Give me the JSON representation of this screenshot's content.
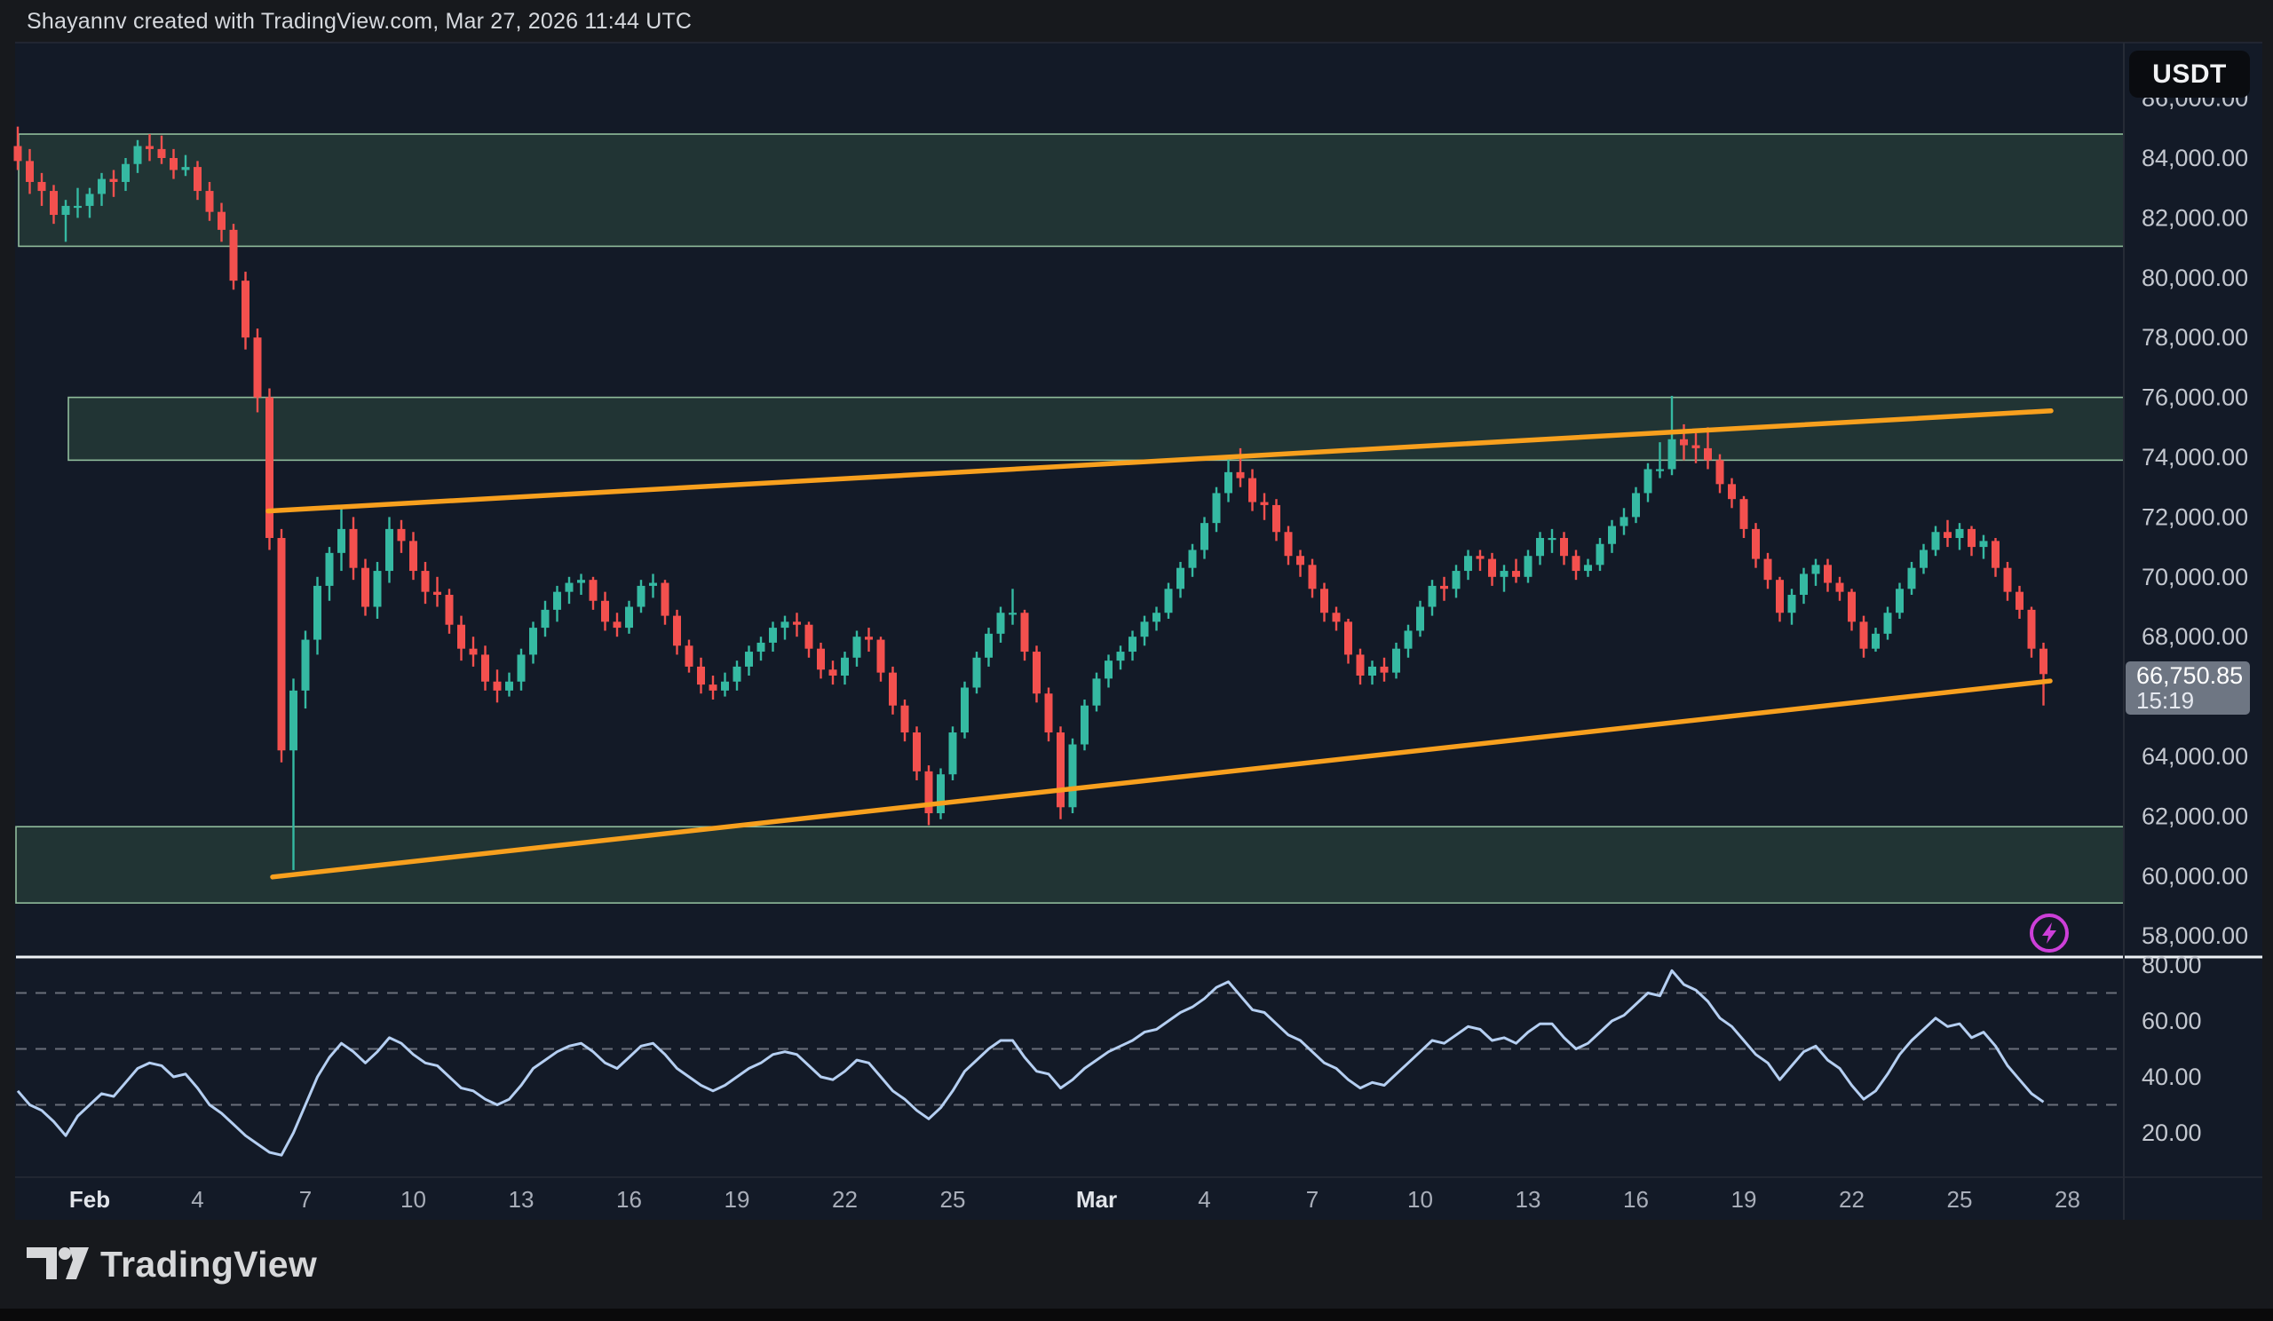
{
  "header": {
    "attribution": "Shayannv created with TradingView.com, Mar 27, 2026 11:44 UTC"
  },
  "price_scale_button_label": "USDT",
  "price_badge": {
    "price": "66,750.85",
    "countdown": "15:19"
  },
  "footer": {
    "brand": "TradingView"
  },
  "colors": {
    "background": "#131a27",
    "chrome": "#17191d",
    "up_candle": "#35b9a2",
    "down_candle": "#f3504e",
    "trendline": "#f8a01e",
    "zone_fill": "rgba(110,190,125,0.16)",
    "zone_border": "rgba(166,215,175,0.85)",
    "rsi_line": "#b5cff2",
    "rsi_band_dash": "#6a6f7a",
    "separator": "#eef1f5",
    "axis_text": "#c3c7cf",
    "time_text": "#a9aeb9",
    "time_text_bold": "#e2e5ea",
    "panel_border": "#262b36",
    "badge_bg": "#6e7683",
    "accent_purple": "#cd3fd9"
  },
  "chart_data": {
    "type": "candlestick",
    "quote_currency": "USDT",
    "timeframe": "8h",
    "unit": "USD_thousands",
    "last_price": 66750.85,
    "ylim": [
      58000,
      86000
    ],
    "grid": "off",
    "candles": [
      [
        84.4,
        85.05,
        83.6,
        83.9
      ],
      [
        83.9,
        84.3,
        82.8,
        83.2
      ],
      [
        83.2,
        83.5,
        82.4,
        82.9
      ],
      [
        82.9,
        83.1,
        81.8,
        82.1
      ],
      [
        82.1,
        82.6,
        81.2,
        82.4
      ],
      [
        82.4,
        83.0,
        82.0,
        82.4
      ],
      [
        82.4,
        83.0,
        82.0,
        82.8
      ],
      [
        82.8,
        83.5,
        82.4,
        83.3
      ],
      [
        83.3,
        83.6,
        82.7,
        83.2
      ],
      [
        83.2,
        84.0,
        82.9,
        83.8
      ],
      [
        83.8,
        84.6,
        83.5,
        84.4
      ],
      [
        84.4,
        84.8,
        83.9,
        84.3
      ],
      [
        84.3,
        84.75,
        83.8,
        84.0
      ],
      [
        84.0,
        84.3,
        83.3,
        83.6
      ],
      [
        83.6,
        84.1,
        83.4,
        83.7
      ],
      [
        83.7,
        83.9,
        82.6,
        82.9
      ],
      [
        82.9,
        83.2,
        81.9,
        82.2
      ],
      [
        82.2,
        82.5,
        81.2,
        81.6
      ],
      [
        81.6,
        81.8,
        79.6,
        79.9
      ],
      [
        79.9,
        80.2,
        77.6,
        78.0
      ],
      [
        78.0,
        78.3,
        75.5,
        76.0
      ],
      [
        76.0,
        76.3,
        70.9,
        71.3
      ],
      [
        71.3,
        71.6,
        63.8,
        64.2
      ],
      [
        64.2,
        66.6,
        60.2,
        66.2
      ],
      [
        66.2,
        68.2,
        65.6,
        67.9
      ],
      [
        67.9,
        70.0,
        67.4,
        69.7
      ],
      [
        69.7,
        71.0,
        69.2,
        70.8
      ],
      [
        70.8,
        72.4,
        70.2,
        71.6
      ],
      [
        71.6,
        72.0,
        69.9,
        70.3
      ],
      [
        70.3,
        70.6,
        68.7,
        69.0
      ],
      [
        69.0,
        70.5,
        68.6,
        70.2
      ],
      [
        70.2,
        72.0,
        69.8,
        71.6
      ],
      [
        71.6,
        71.9,
        70.8,
        71.2
      ],
      [
        71.2,
        71.5,
        69.9,
        70.2
      ],
      [
        70.2,
        70.5,
        69.1,
        69.5
      ],
      [
        69.5,
        70.0,
        69.0,
        69.4
      ],
      [
        69.4,
        69.6,
        68.1,
        68.4
      ],
      [
        68.4,
        68.7,
        67.2,
        67.6
      ],
      [
        67.6,
        68.0,
        67.0,
        67.4
      ],
      [
        67.4,
        67.7,
        66.2,
        66.5
      ],
      [
        66.5,
        66.9,
        65.8,
        66.2
      ],
      [
        66.2,
        66.8,
        66.0,
        66.5
      ],
      [
        66.5,
        67.6,
        66.2,
        67.4
      ],
      [
        67.4,
        68.5,
        67.1,
        68.3
      ],
      [
        68.3,
        69.2,
        68.0,
        68.9
      ],
      [
        68.9,
        69.7,
        68.5,
        69.5
      ],
      [
        69.5,
        70.0,
        69.1,
        69.8
      ],
      [
        69.8,
        70.1,
        69.4,
        69.9
      ],
      [
        69.9,
        70.0,
        68.9,
        69.2
      ],
      [
        69.2,
        69.5,
        68.2,
        68.5
      ],
      [
        68.5,
        68.8,
        68.0,
        68.3
      ],
      [
        68.3,
        69.2,
        68.1,
        69.0
      ],
      [
        69.0,
        69.9,
        68.8,
        69.7
      ],
      [
        69.7,
        70.1,
        69.3,
        69.8
      ],
      [
        69.8,
        69.9,
        68.4,
        68.7
      ],
      [
        68.7,
        68.9,
        67.4,
        67.7
      ],
      [
        67.7,
        67.9,
        66.8,
        67.0
      ],
      [
        67.0,
        67.3,
        66.1,
        66.4
      ],
      [
        66.4,
        66.7,
        65.9,
        66.2
      ],
      [
        66.2,
        66.8,
        66.0,
        66.5
      ],
      [
        66.5,
        67.2,
        66.2,
        67.0
      ],
      [
        67.0,
        67.7,
        66.7,
        67.5
      ],
      [
        67.5,
        68.0,
        67.2,
        67.8
      ],
      [
        67.8,
        68.5,
        67.5,
        68.3
      ],
      [
        68.3,
        68.7,
        67.9,
        68.5
      ],
      [
        68.5,
        68.8,
        68.0,
        68.4
      ],
      [
        68.4,
        68.5,
        67.3,
        67.6
      ],
      [
        67.6,
        67.8,
        66.6,
        66.9
      ],
      [
        66.9,
        67.2,
        66.4,
        66.7
      ],
      [
        66.7,
        67.5,
        66.4,
        67.3
      ],
      [
        67.3,
        68.2,
        67.0,
        68.0
      ],
      [
        68.0,
        68.3,
        67.5,
        67.9
      ],
      [
        67.9,
        68.0,
        66.5,
        66.8
      ],
      [
        66.8,
        67.0,
        65.4,
        65.7
      ],
      [
        65.7,
        65.9,
        64.5,
        64.8
      ],
      [
        64.8,
        65.0,
        63.2,
        63.5
      ],
      [
        63.5,
        63.7,
        61.7,
        62.1
      ],
      [
        62.1,
        63.6,
        61.9,
        63.4
      ],
      [
        63.4,
        65.0,
        63.2,
        64.8
      ],
      [
        64.8,
        66.5,
        64.6,
        66.3
      ],
      [
        66.3,
        67.5,
        66.1,
        67.3
      ],
      [
        67.3,
        68.3,
        67.0,
        68.1
      ],
      [
        68.1,
        69.0,
        67.8,
        68.8
      ],
      [
        68.8,
        69.6,
        68.4,
        68.8
      ],
      [
        68.8,
        68.9,
        67.2,
        67.5
      ],
      [
        67.5,
        67.7,
        65.8,
        66.1
      ],
      [
        66.1,
        66.3,
        64.5,
        64.8
      ],
      [
        64.8,
        65.0,
        61.9,
        62.3
      ],
      [
        62.3,
        64.6,
        62.1,
        64.4
      ],
      [
        64.4,
        65.9,
        64.2,
        65.7
      ],
      [
        65.7,
        66.8,
        65.5,
        66.6
      ],
      [
        66.6,
        67.4,
        66.3,
        67.2
      ],
      [
        67.2,
        67.7,
        66.9,
        67.5
      ],
      [
        67.5,
        68.2,
        67.2,
        68.0
      ],
      [
        68.0,
        68.7,
        67.7,
        68.5
      ],
      [
        68.5,
        69.0,
        68.2,
        68.8
      ],
      [
        68.8,
        69.8,
        68.6,
        69.6
      ],
      [
        69.6,
        70.5,
        69.3,
        70.3
      ],
      [
        70.3,
        71.1,
        70.0,
        70.9
      ],
      [
        70.9,
        72.0,
        70.6,
        71.8
      ],
      [
        71.8,
        73.0,
        71.5,
        72.8
      ],
      [
        72.8,
        74.0,
        72.5,
        73.5
      ],
      [
        73.5,
        74.3,
        73.0,
        73.3
      ],
      [
        73.3,
        73.6,
        72.2,
        72.5
      ],
      [
        72.5,
        72.8,
        71.9,
        72.4
      ],
      [
        72.4,
        72.6,
        71.2,
        71.5
      ],
      [
        71.5,
        71.7,
        70.4,
        70.7
      ],
      [
        70.7,
        70.9,
        70.0,
        70.4
      ],
      [
        70.4,
        70.6,
        69.3,
        69.6
      ],
      [
        69.6,
        69.8,
        68.5,
        68.8
      ],
      [
        68.8,
        69.0,
        68.2,
        68.5
      ],
      [
        68.5,
        68.6,
        67.1,
        67.4
      ],
      [
        67.4,
        67.6,
        66.4,
        66.7
      ],
      [
        66.7,
        67.2,
        66.4,
        67.0
      ],
      [
        67.0,
        67.3,
        66.5,
        66.8
      ],
      [
        66.8,
        67.8,
        66.6,
        67.6
      ],
      [
        67.6,
        68.4,
        67.3,
        68.2
      ],
      [
        68.2,
        69.2,
        68.0,
        69.0
      ],
      [
        69.0,
        69.9,
        68.7,
        69.7
      ],
      [
        69.7,
        70.0,
        69.2,
        69.6
      ],
      [
        69.6,
        70.4,
        69.3,
        70.2
      ],
      [
        70.2,
        70.9,
        69.9,
        70.7
      ],
      [
        70.7,
        70.9,
        70.2,
        70.6
      ],
      [
        70.6,
        70.8,
        69.7,
        70.0
      ],
      [
        70.0,
        70.4,
        69.5,
        70.2
      ],
      [
        70.2,
        70.6,
        69.8,
        70.0
      ],
      [
        70.0,
        70.9,
        69.8,
        70.7
      ],
      [
        70.7,
        71.5,
        70.4,
        71.3
      ],
      [
        71.3,
        71.6,
        70.8,
        71.3
      ],
      [
        71.3,
        71.5,
        70.4,
        70.7
      ],
      [
        70.7,
        70.9,
        69.9,
        70.2
      ],
      [
        70.2,
        70.6,
        70.0,
        70.4
      ],
      [
        70.4,
        71.3,
        70.2,
        71.1
      ],
      [
        71.1,
        71.9,
        70.8,
        71.7
      ],
      [
        71.7,
        72.3,
        71.4,
        72.0
      ],
      [
        72.0,
        73.0,
        71.8,
        72.8
      ],
      [
        72.8,
        73.8,
        72.5,
        73.6
      ],
      [
        73.6,
        74.5,
        73.3,
        73.6
      ],
      [
        73.6,
        76.05,
        73.4,
        74.6
      ],
      [
        74.6,
        75.1,
        73.9,
        74.4
      ],
      [
        74.4,
        74.8,
        73.8,
        74.3
      ],
      [
        74.3,
        75.0,
        73.6,
        73.9
      ],
      [
        73.9,
        74.1,
        72.8,
        73.1
      ],
      [
        73.1,
        73.3,
        72.3,
        72.6
      ],
      [
        72.6,
        72.7,
        71.3,
        71.6
      ],
      [
        71.6,
        71.8,
        70.3,
        70.6
      ],
      [
        70.6,
        70.8,
        69.6,
        69.9
      ],
      [
        69.9,
        70.0,
        68.5,
        68.8
      ],
      [
        68.8,
        69.6,
        68.4,
        69.4
      ],
      [
        69.4,
        70.3,
        69.1,
        70.1
      ],
      [
        70.1,
        70.6,
        69.7,
        70.4
      ],
      [
        70.4,
        70.6,
        69.5,
        69.8
      ],
      [
        69.8,
        70.0,
        69.2,
        69.5
      ],
      [
        69.5,
        69.6,
        68.2,
        68.5
      ],
      [
        68.5,
        68.7,
        67.3,
        67.6
      ],
      [
        67.6,
        68.3,
        67.5,
        68.1
      ],
      [
        68.1,
        69.0,
        67.9,
        68.8
      ],
      [
        68.8,
        69.8,
        68.6,
        69.6
      ],
      [
        69.6,
        70.5,
        69.4,
        70.3
      ],
      [
        70.3,
        71.1,
        70.1,
        70.9
      ],
      [
        70.9,
        71.7,
        70.7,
        71.5
      ],
      [
        71.5,
        71.9,
        71.0,
        71.3
      ],
      [
        71.3,
        71.8,
        70.9,
        71.6
      ],
      [
        71.6,
        71.7,
        70.7,
        71.0
      ],
      [
        71.0,
        71.4,
        70.6,
        71.2
      ],
      [
        71.2,
        71.3,
        70.0,
        70.3
      ],
      [
        70.3,
        70.5,
        69.2,
        69.5
      ],
      [
        69.5,
        69.7,
        68.6,
        68.9
      ],
      [
        68.9,
        69.0,
        67.3,
        67.6
      ],
      [
        67.6,
        67.8,
        65.7,
        66.75085
      ]
    ],
    "price_axis": {
      "labels": [
        {
          "text": "86,000.00",
          "value": 86000
        },
        {
          "text": "84,000.00",
          "value": 84000
        },
        {
          "text": "82,000.00",
          "value": 82000
        },
        {
          "text": "80,000.00",
          "value": 80000
        },
        {
          "text": "78,000.00",
          "value": 78000
        },
        {
          "text": "76,000.00",
          "value": 76000
        },
        {
          "text": "74,000.00",
          "value": 74000
        },
        {
          "text": "72,000.00",
          "value": 72000
        },
        {
          "text": "70,000.00",
          "value": 70000
        },
        {
          "text": "68,000.00",
          "value": 68000
        },
        {
          "text": "66,000.00",
          "value": 66000
        },
        {
          "text": "64,000.00",
          "value": 64000
        },
        {
          "text": "62,000.00",
          "value": 62000
        },
        {
          "text": "60,000.00",
          "value": 60000
        },
        {
          "text": "58,000.00",
          "value": 58000
        }
      ]
    },
    "time_axis": [
      {
        "label": "Feb",
        "day": 2,
        "bold": true
      },
      {
        "label": "4",
        "day": 5
      },
      {
        "label": "7",
        "day": 8
      },
      {
        "label": "10",
        "day": 11
      },
      {
        "label": "13",
        "day": 14
      },
      {
        "label": "16",
        "day": 17
      },
      {
        "label": "19",
        "day": 20
      },
      {
        "label": "22",
        "day": 23
      },
      {
        "label": "25",
        "day": 26
      },
      {
        "label": "Mar",
        "day": 30,
        "bold": true
      },
      {
        "label": "4",
        "day": 33
      },
      {
        "label": "7",
        "day": 36
      },
      {
        "label": "10",
        "day": 39
      },
      {
        "label": "13",
        "day": 42
      },
      {
        "label": "16",
        "day": 45
      },
      {
        "label": "19",
        "day": 48
      },
      {
        "label": "22",
        "day": 51
      },
      {
        "label": "25",
        "day": 54
      },
      {
        "label": "28",
        "day": 57
      }
    ],
    "zones": [
      {
        "name": "upper-resistance-zone",
        "price_top": 84800,
        "price_bottom": 81050,
        "x_start": 21
      },
      {
        "name": "mid-resistance-zone",
        "price_top": 76000,
        "price_bottom": 73900,
        "x_start": 77
      },
      {
        "name": "lower-support-zone",
        "price_top": 61650,
        "price_bottom": 59100,
        "x_start": 18
      }
    ],
    "trendlines": [
      {
        "name": "upper-channel-line",
        "x1": 302,
        "price1": 72200,
        "x2": 2310,
        "price2": 75550
      },
      {
        "name": "lower-channel-line",
        "x1": 307,
        "price1": 59970,
        "x2": 2309,
        "price2": 66520
      }
    ],
    "rsi": {
      "title_hint": "RSI sub-panel",
      "bands": [
        70,
        50,
        30
      ],
      "scale_labels": [
        {
          "text": "80.00",
          "value": 80
        },
        {
          "text": "60.00",
          "value": 60
        },
        {
          "text": "40.00",
          "value": 40
        },
        {
          "text": "20.00",
          "value": 20
        }
      ],
      "values": [
        35,
        30,
        28,
        24,
        19,
        26,
        30,
        34,
        33,
        38,
        43,
        45,
        44,
        40,
        41,
        36,
        30,
        27,
        23,
        19,
        16,
        13,
        12,
        20,
        30,
        40,
        47,
        52,
        49,
        45,
        49,
        54,
        52,
        48,
        45,
        44,
        40,
        36,
        35,
        32,
        30,
        32,
        37,
        43,
        46,
        49,
        51,
        52,
        49,
        45,
        43,
        47,
        51,
        52,
        48,
        43,
        40,
        37,
        35,
        37,
        40,
        43,
        45,
        48,
        49,
        48,
        44,
        40,
        39,
        42,
        46,
        45,
        40,
        35,
        32,
        28,
        25,
        29,
        35,
        42,
        46,
        50,
        53,
        53,
        47,
        42,
        41,
        36,
        39,
        43,
        46,
        49,
        51,
        53,
        56,
        57,
        60,
        63,
        65,
        68,
        72,
        74,
        69,
        64,
        63,
        59,
        55,
        53,
        49,
        45,
        43,
        39,
        36,
        38,
        37,
        41,
        45,
        49,
        53,
        52,
        55,
        58,
        57,
        53,
        54,
        52,
        56,
        59,
        59,
        54,
        50,
        52,
        56,
        60,
        62,
        66,
        70,
        69,
        78,
        73,
        71,
        67,
        61,
        58,
        53,
        48,
        45,
        39,
        44,
        49,
        51,
        46,
        43,
        37,
        32,
        35,
        41,
        48,
        53,
        57,
        61,
        58,
        59,
        54,
        56,
        51,
        44,
        39,
        34,
        31
      ]
    }
  }
}
